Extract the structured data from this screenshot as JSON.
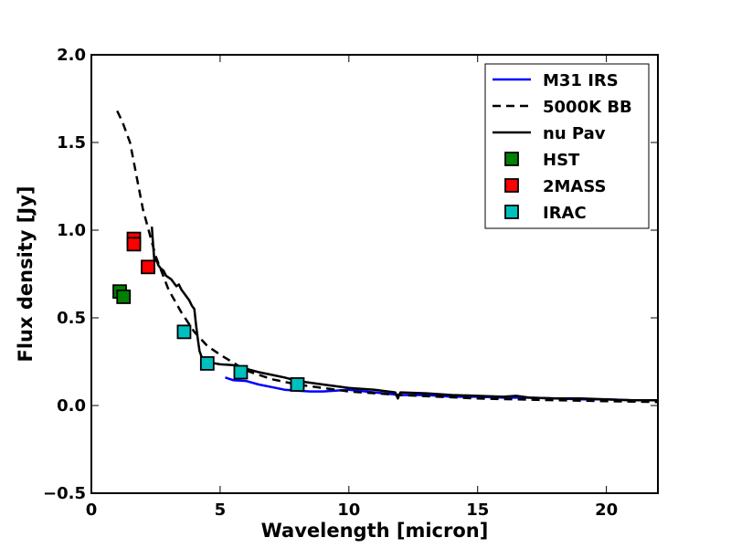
{
  "chart_data": {
    "type": "line",
    "title": "",
    "xlabel": "Wavelength [micron]",
    "ylabel": "Flux density [Jy]",
    "xlim": [
      0,
      22
    ],
    "ylim": [
      -0.5,
      2.0
    ],
    "xticks": [
      0,
      5,
      10,
      15,
      20
    ],
    "yticks": [
      -0.5,
      0.0,
      0.5,
      1.0,
      1.5,
      2.0
    ],
    "xtick_labels": [
      "0",
      "5",
      "10",
      "15",
      "20"
    ],
    "ytick_labels": [
      "−0.5",
      "0.0",
      "0.5",
      "1.0",
      "1.5",
      "2.0"
    ],
    "grid": false,
    "legend_position": "top-right",
    "series": [
      {
        "name": "M31 IRS",
        "kind": "line",
        "style": "solid",
        "color": "#0000ff",
        "x": [
          5.2,
          5.5,
          6.0,
          6.5,
          7.0,
          7.5,
          8.0,
          8.5,
          9.0,
          10.0,
          11.0,
          12.0,
          13.0,
          14.0,
          15.0,
          16.0,
          17.0,
          18.0,
          19.0,
          20.0,
          21.0,
          22.0
        ],
        "y": [
          0.16,
          0.145,
          0.14,
          0.12,
          0.105,
          0.09,
          0.085,
          0.08,
          0.08,
          0.09,
          0.075,
          0.06,
          0.06,
          0.05,
          0.05,
          0.045,
          0.045,
          0.04,
          0.035,
          0.035,
          0.03,
          0.03
        ]
      },
      {
        "name": "5000K BB",
        "kind": "line",
        "style": "dashed",
        "color": "#000000",
        "x": [
          1.0,
          1.2,
          1.5,
          2.0,
          2.5,
          3.0,
          3.5,
          4.0,
          4.5,
          5.0,
          6.0,
          7.0,
          8.0,
          10.0,
          12.0,
          15.0,
          18.0,
          20.0,
          22.0
        ],
        "y": [
          1.68,
          1.62,
          1.5,
          1.12,
          0.85,
          0.66,
          0.53,
          0.42,
          0.34,
          0.29,
          0.2,
          0.15,
          0.12,
          0.08,
          0.06,
          0.04,
          0.03,
          0.025,
          0.02
        ]
      },
      {
        "name": "nu Pav",
        "kind": "line",
        "style": "solid",
        "color": "#000000",
        "x": [
          2.35,
          2.38,
          2.45,
          2.5,
          2.6,
          2.7,
          2.8,
          2.9,
          3.0,
          3.1,
          3.2,
          3.3,
          3.4,
          3.5,
          3.6,
          3.7,
          3.8,
          3.9,
          4.0,
          4.05,
          4.1,
          4.15,
          4.2,
          4.3,
          4.5,
          4.8,
          5.0,
          5.5,
          6.0,
          6.5,
          7.0,
          7.5,
          8.0,
          9.0,
          10.0,
          11.0,
          11.8,
          11.9,
          12.0,
          13.0,
          14.0,
          15.0,
          16.0,
          16.5,
          17.0,
          18.0,
          19.0,
          20.0,
          21.0,
          22.0
        ],
        "y": [
          1.02,
          0.95,
          0.82,
          0.84,
          0.8,
          0.78,
          0.77,
          0.74,
          0.73,
          0.72,
          0.7,
          0.68,
          0.69,
          0.66,
          0.64,
          0.62,
          0.6,
          0.57,
          0.55,
          0.48,
          0.42,
          0.36,
          0.31,
          0.27,
          0.245,
          0.24,
          0.235,
          0.23,
          0.21,
          0.19,
          0.175,
          0.16,
          0.14,
          0.12,
          0.1,
          0.09,
          0.075,
          0.04,
          0.075,
          0.07,
          0.06,
          0.055,
          0.05,
          0.055,
          0.045,
          0.04,
          0.04,
          0.035,
          0.03,
          0.03
        ]
      },
      {
        "name": "HST",
        "kind": "marker",
        "marker": "square",
        "color": "#008000",
        "x": [
          1.1,
          1.25
        ],
        "y": [
          0.65,
          0.62
        ]
      },
      {
        "name": "2MASS",
        "kind": "marker",
        "marker": "square",
        "color": "#ff0000",
        "x": [
          1.65,
          1.65,
          2.2
        ],
        "y": [
          0.95,
          0.92,
          0.79
        ]
      },
      {
        "name": "IRAC",
        "kind": "marker",
        "marker": "square",
        "color": "#00bfbf",
        "x": [
          3.6,
          4.5,
          5.8,
          8.0
        ],
        "y": [
          0.42,
          0.24,
          0.19,
          0.12
        ]
      }
    ]
  }
}
